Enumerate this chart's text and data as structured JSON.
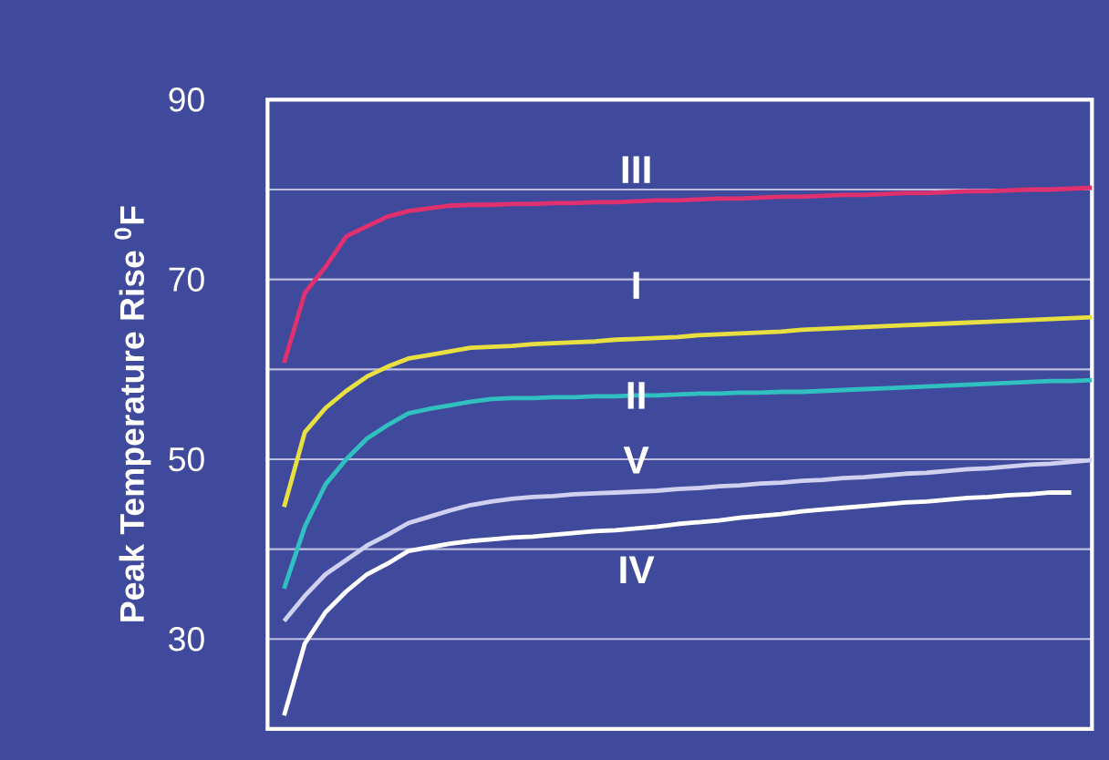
{
  "chart_data": {
    "type": "line",
    "ylabel": "Peak Temperature Rise $^{0}$F",
    "categories": [
      null,
      null,
      null,
      null,
      null,
      null,
      null,
      null,
      null,
      null,
      null,
      null,
      null,
      null,
      null,
      null,
      null,
      null,
      null,
      null,
      null,
      null,
      null,
      null,
      null,
      null,
      null,
      null,
      null,
      null,
      null,
      null,
      null,
      null,
      null,
      null,
      null,
      null,
      null,
      null
    ],
    "series": [
      {
        "name": "III",
        "color": "#e0306e",
        "values": [
          60.7,
          68.5,
          71.4,
          74.8,
          75.9,
          77.0,
          77.6,
          77.9,
          78.2,
          78.3,
          78.3,
          78.4,
          78.4,
          78.5,
          78.5,
          78.6,
          78.6,
          78.7,
          78.8,
          78.8,
          78.9,
          79.0,
          79.0,
          79.1,
          79.2,
          79.2,
          79.3,
          79.4,
          79.4,
          79.5,
          79.6,
          79.6,
          79.7,
          79.8,
          79.8,
          79.9,
          80.0,
          80.0,
          80.1,
          80.2
        ]
      },
      {
        "name": "I",
        "color": "#e8e040",
        "values": [
          44.7,
          53.0,
          55.7,
          57.6,
          59.2,
          60.3,
          61.2,
          61.6,
          62.0,
          62.4,
          62.5,
          62.6,
          62.8,
          62.9,
          63.0,
          63.1,
          63.3,
          63.4,
          63.5,
          63.6,
          63.8,
          63.9,
          64.0,
          64.1,
          64.2,
          64.4,
          64.5,
          64.6,
          64.7,
          64.8,
          64.9,
          65.0,
          65.1,
          65.2,
          65.3,
          65.4,
          65.5,
          65.6,
          65.7,
          65.8
        ]
      },
      {
        "name": "II",
        "color": "#30c0c0",
        "values": [
          35.6,
          42.5,
          47.2,
          50.0,
          52.3,
          53.8,
          55.1,
          55.6,
          56.0,
          56.4,
          56.7,
          56.8,
          56.8,
          56.9,
          56.9,
          57.0,
          57.0,
          57.1,
          57.1,
          57.2,
          57.3,
          57.3,
          57.4,
          57.4,
          57.5,
          57.5,
          57.6,
          57.7,
          57.8,
          57.9,
          58.0,
          58.1,
          58.2,
          58.3,
          58.4,
          58.5,
          58.6,
          58.7,
          58.7,
          58.8
        ]
      },
      {
        "name": "V",
        "color": "#d0d0f0",
        "values": [
          32.0,
          34.8,
          37.2,
          38.8,
          40.4,
          41.6,
          42.9,
          43.6,
          44.3,
          44.9,
          45.3,
          45.6,
          45.8,
          45.9,
          46.1,
          46.2,
          46.3,
          46.4,
          46.5,
          46.7,
          46.8,
          47.0,
          47.1,
          47.3,
          47.4,
          47.6,
          47.7,
          47.9,
          48.0,
          48.2,
          48.4,
          48.5,
          48.7,
          48.9,
          49.0,
          49.2,
          49.4,
          49.5,
          49.7,
          49.9
        ]
      },
      {
        "name": "IV",
        "color": "#ffffff",
        "values": [
          21.5,
          29.5,
          33.0,
          35.3,
          37.2,
          38.4,
          39.8,
          40.2,
          40.6,
          40.9,
          41.1,
          41.3,
          41.4,
          41.6,
          41.8,
          42.0,
          42.1,
          42.3,
          42.5,
          42.8,
          43.0,
          43.2,
          43.5,
          43.7,
          43.9,
          44.2,
          44.4,
          44.6,
          44.8,
          45.0,
          45.2,
          45.3,
          45.5,
          45.7,
          45.8,
          46.0,
          46.1,
          46.3,
          46.3,
          null
        ]
      }
    ],
    "ylim": [
      20,
      90
    ],
    "yticks": [
      30,
      {
        "value": 40,
        "label": null
      },
      50,
      {
        "value": 60,
        "label": null
      },
      70,
      {
        "value": 80,
        "label": null
      },
      90
    ],
    "grid": "y"
  }
}
